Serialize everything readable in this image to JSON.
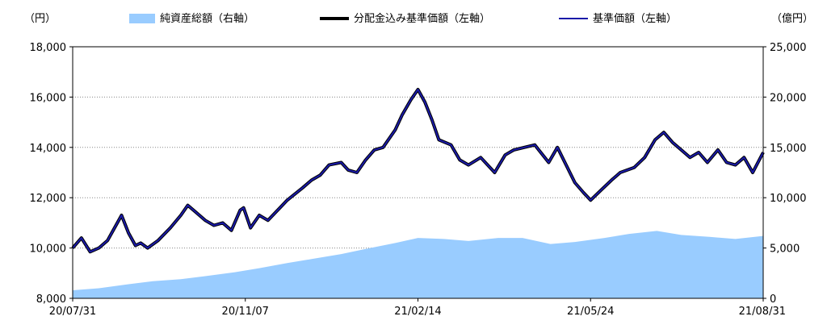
{
  "chart_data": {
    "type": "line",
    "left_axis_unit": "（円）",
    "right_axis_unit": "（億円）",
    "left_ticks": [
      "8,000",
      "10,000",
      "12,000",
      "14,000",
      "16,000",
      "18,000"
    ],
    "left_tick_values": [
      8000,
      10000,
      12000,
      14000,
      16000,
      18000
    ],
    "right_ticks": [
      "0",
      "5,000",
      "10,000",
      "15,000",
      "20,000",
      "25,000"
    ],
    "right_tick_values": [
      0,
      5000,
      10000,
      15000,
      20000,
      25000
    ],
    "x_ticks": [
      "20/07/31",
      "20/11/07",
      "21/02/14",
      "21/05/24",
      "21/08/31"
    ],
    "x_tick_dates": [
      "2020-07-31",
      "2020-11-07",
      "2021-02-14",
      "2021-05-24",
      "2021-08-31"
    ],
    "ylim_left": [
      8000,
      18000
    ],
    "ylim_right": [
      0,
      25000
    ],
    "xlim": [
      "2020-07-31",
      "2021-08-31"
    ],
    "grid": true,
    "legend_position": "top",
    "colors": {
      "net_assets": "#99ccff",
      "dividend_nav": "#000000",
      "nav": "#1a1aa8",
      "grid": "#888888"
    },
    "series": [
      {
        "name": "純資産総額（右軸）",
        "kind": "area",
        "axis": "right",
        "x": [
          "2020-07-31",
          "2020-08-15",
          "2020-09-01",
          "2020-09-15",
          "2020-10-01",
          "2020-10-15",
          "2020-11-01",
          "2020-11-15",
          "2020-12-01",
          "2020-12-15",
          "2021-01-01",
          "2021-01-15",
          "2021-02-01",
          "2021-02-14",
          "2021-03-01",
          "2021-03-15",
          "2021-04-01",
          "2021-04-15",
          "2021-05-01",
          "2021-05-15",
          "2021-06-01",
          "2021-06-15",
          "2021-07-01",
          "2021-07-15",
          "2021-08-01",
          "2021-08-15",
          "2021-08-31"
        ],
        "values": [
          800,
          1000,
          1400,
          1700,
          1900,
          2200,
          2600,
          3000,
          3500,
          3900,
          4400,
          4900,
          5500,
          6000,
          5900,
          5700,
          6000,
          6000,
          5400,
          5600,
          6000,
          6400,
          6700,
          6300,
          6100,
          5900,
          6200
        ]
      },
      {
        "name": "分配金込み基準価額（左軸）",
        "kind": "line",
        "axis": "left",
        "x": [
          "2020-07-31",
          "2020-08-05",
          "2020-08-10",
          "2020-08-15",
          "2020-08-20",
          "2020-08-28",
          "2020-09-01",
          "2020-09-05",
          "2020-09-08",
          "2020-09-12",
          "2020-09-18",
          "2020-09-25",
          "2020-10-01",
          "2020-10-05",
          "2020-10-10",
          "2020-10-15",
          "2020-10-20",
          "2020-10-25",
          "2020-10-30",
          "2020-11-04",
          "2020-11-06",
          "2020-11-10",
          "2020-11-15",
          "2020-11-20",
          "2020-12-01",
          "2020-12-10",
          "2020-12-15",
          "2020-12-20",
          "2020-12-25",
          "2021-01-01",
          "2021-01-05",
          "2021-01-10",
          "2021-01-15",
          "2021-01-20",
          "2021-01-25",
          "2021-02-01",
          "2021-02-05",
          "2021-02-10",
          "2021-02-14",
          "2021-02-18",
          "2021-02-22",
          "2021-02-26",
          "2021-03-05",
          "2021-03-10",
          "2021-03-15",
          "2021-03-22",
          "2021-03-30",
          "2021-04-05",
          "2021-04-10",
          "2021-04-16",
          "2021-04-22",
          "2021-04-30",
          "2021-05-05",
          "2021-05-10",
          "2021-05-15",
          "2021-05-20",
          "2021-05-24",
          "2021-05-30",
          "2021-06-05",
          "2021-06-10",
          "2021-06-18",
          "2021-06-24",
          "2021-06-30",
          "2021-07-05",
          "2021-07-10",
          "2021-07-15",
          "2021-07-20",
          "2021-07-25",
          "2021-07-30",
          "2021-08-05",
          "2021-08-10",
          "2021-08-15",
          "2021-08-20",
          "2021-08-25",
          "2021-08-31"
        ],
        "values": [
          10000,
          10400,
          9850,
          10000,
          10300,
          11300,
          10600,
          10100,
          10200,
          10000,
          10300,
          10800,
          11300,
          11700,
          11400,
          11100,
          10900,
          11000,
          10700,
          11500,
          11600,
          10800,
          11300,
          11100,
          11900,
          12400,
          12700,
          12900,
          13300,
          13400,
          13100,
          13000,
          13500,
          13900,
          14000,
          14700,
          15300,
          15900,
          16300,
          15800,
          15100,
          14300,
          14100,
          13500,
          13300,
          13600,
          13000,
          13700,
          13900,
          14000,
          14100,
          13400,
          14000,
          13300,
          12600,
          12200,
          11900,
          12300,
          12700,
          13000,
          13200,
          13600,
          14300,
          14600,
          14200,
          13900,
          13600,
          13800,
          13400,
          13900,
          13400,
          13300,
          13600,
          13000,
          13800
        ]
      },
      {
        "name": "基準価額（左軸）",
        "kind": "line",
        "axis": "left",
        "x": [
          "2020-07-31",
          "2020-08-05",
          "2020-08-10",
          "2020-08-15",
          "2020-08-20",
          "2020-08-28",
          "2020-09-01",
          "2020-09-05",
          "2020-09-08",
          "2020-09-12",
          "2020-09-18",
          "2020-09-25",
          "2020-10-01",
          "2020-10-05",
          "2020-10-10",
          "2020-10-15",
          "2020-10-20",
          "2020-10-25",
          "2020-10-30",
          "2020-11-04",
          "2020-11-06",
          "2020-11-10",
          "2020-11-15",
          "2020-11-20",
          "2020-12-01",
          "2020-12-10",
          "2020-12-15",
          "2020-12-20",
          "2020-12-25",
          "2021-01-01",
          "2021-01-05",
          "2021-01-10",
          "2021-01-15",
          "2021-01-20",
          "2021-01-25",
          "2021-02-01",
          "2021-02-05",
          "2021-02-10",
          "2021-02-14",
          "2021-02-18",
          "2021-02-22",
          "2021-02-26",
          "2021-03-05",
          "2021-03-10",
          "2021-03-15",
          "2021-03-22",
          "2021-03-30",
          "2021-04-05",
          "2021-04-10",
          "2021-04-16",
          "2021-04-22",
          "2021-04-30",
          "2021-05-05",
          "2021-05-10",
          "2021-05-15",
          "2021-05-20",
          "2021-05-24",
          "2021-05-30",
          "2021-06-05",
          "2021-06-10",
          "2021-06-18",
          "2021-06-24",
          "2021-06-30",
          "2021-07-05",
          "2021-07-10",
          "2021-07-15",
          "2021-07-20",
          "2021-07-25",
          "2021-07-30",
          "2021-08-05",
          "2021-08-10",
          "2021-08-15",
          "2021-08-20",
          "2021-08-25",
          "2021-08-31"
        ],
        "values": [
          10000,
          10400,
          9850,
          10000,
          10300,
          11300,
          10600,
          10100,
          10200,
          10000,
          10300,
          10800,
          11300,
          11700,
          11400,
          11100,
          10900,
          11000,
          10700,
          11500,
          11600,
          10800,
          11300,
          11100,
          11900,
          12400,
          12700,
          12900,
          13300,
          13400,
          13100,
          13000,
          13500,
          13900,
          14000,
          14700,
          15300,
          15900,
          16300,
          15800,
          15100,
          14300,
          14100,
          13500,
          13300,
          13600,
          13000,
          13700,
          13900,
          14000,
          14100,
          13400,
          14000,
          13300,
          12600,
          12200,
          11900,
          12300,
          12700,
          13000,
          13200,
          13600,
          14300,
          14600,
          14200,
          13900,
          13600,
          13800,
          13400,
          13900,
          13400,
          13300,
          13600,
          13000,
          13800
        ]
      }
    ],
    "legend": [
      {
        "label": "純資産総額（右軸）",
        "style": "area"
      },
      {
        "label": "分配金込み基準価額（左軸）",
        "style": "thick-line"
      },
      {
        "label": "基準価額（左軸）",
        "style": "line"
      }
    ]
  }
}
